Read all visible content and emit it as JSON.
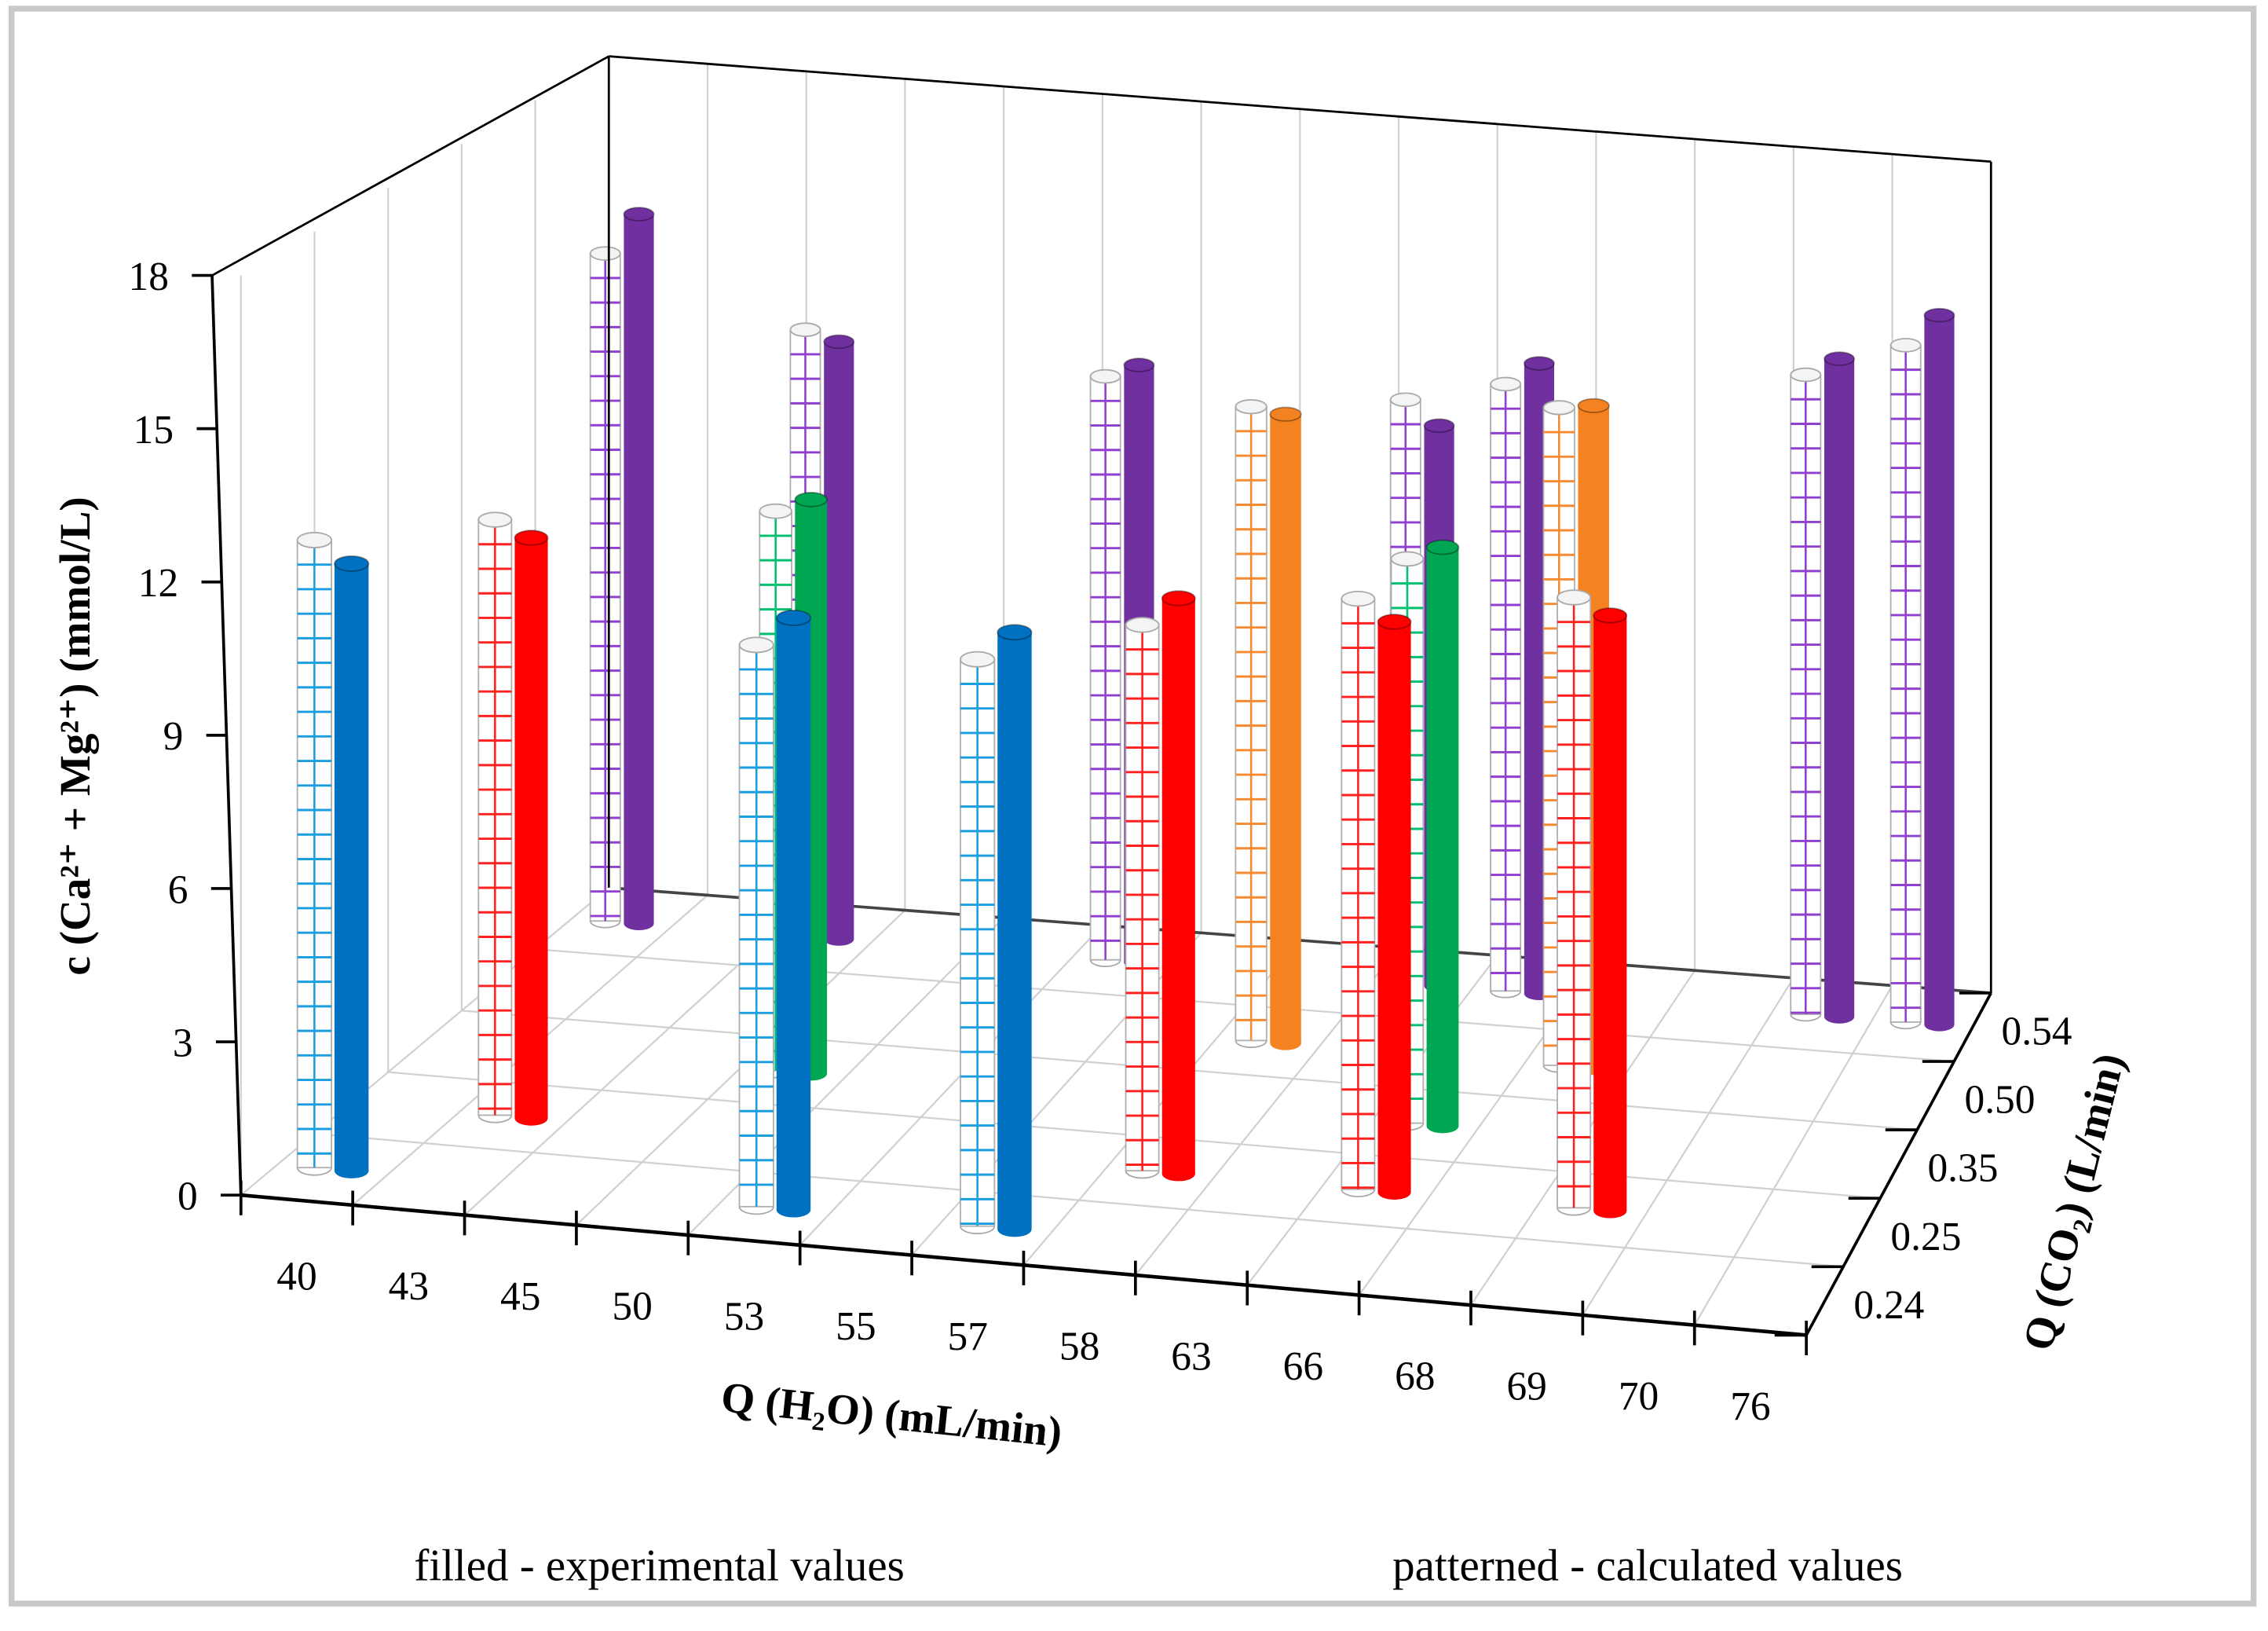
{
  "chart_data": {
    "type": "bar3d",
    "title": "",
    "ylabel": "c (Ca²⁺ + Mg²⁺) (mmol/L)",
    "xlabel": "Q (H₂O) (mL/min)",
    "zlabel": "Q (CO₂) (L/min)",
    "ylim": [
      0,
      18
    ],
    "yticks": [
      0,
      3,
      6,
      9,
      12,
      15,
      18
    ],
    "x_categories": [
      "40",
      "43",
      "45",
      "50",
      "53",
      "55",
      "57",
      "58",
      "63",
      "66",
      "68",
      "69",
      "70",
      "76"
    ],
    "z_categories": [
      "0.24",
      "0.25",
      "0.35",
      "0.50",
      "0.54"
    ],
    "legend": {
      "filled": "filled - experimental values",
      "patterned": "patterned  - calculated values"
    },
    "series": [
      {
        "name": "0.24",
        "color": "#0070c0",
        "pattern_color": "#1a9ee0",
        "points": [
          {
            "x": "40",
            "calculated": 12.4,
            "experimental": 12.0
          },
          {
            "x": "53",
            "calculated": 11.1,
            "experimental": 11.7
          },
          {
            "x": "57",
            "calculated": 11.2,
            "experimental": 11.8
          }
        ]
      },
      {
        "name": "0.25",
        "color": "#ff0000",
        "pattern_color": "#ff2020",
        "points": [
          {
            "x": "43",
            "calculated": 12.0,
            "experimental": 11.7
          },
          {
            "x": "58",
            "calculated": 11.0,
            "experimental": 11.6
          },
          {
            "x": "66",
            "calculated": 11.9,
            "experimental": 11.5
          },
          {
            "x": "69",
            "calculated": 12.3,
            "experimental": 12.0
          }
        ]
      },
      {
        "name": "0.35",
        "color": "#00a651",
        "pattern_color": "#00c070",
        "points": [
          {
            "x": "50",
            "calculated": 11.5,
            "experimental": 11.8
          },
          {
            "x": "66",
            "calculated": 11.6,
            "experimental": 11.9
          }
        ]
      },
      {
        "name": "0.50",
        "color": "#f58220",
        "pattern_color": "#f58a30",
        "points": [
          {
            "x": "58",
            "calculated": 13.3,
            "experimental": 13.2
          },
          {
            "x": "68",
            "calculated": 13.8,
            "experimental": 13.9
          }
        ]
      },
      {
        "name": "0.54",
        "color": "#7030a0",
        "pattern_color": "#9040d0",
        "points": [
          {
            "x": "40",
            "calculated": 14.3,
            "experimental": 15.2
          },
          {
            "x": "45",
            "calculated": 13.0,
            "experimental": 12.8
          },
          {
            "x": "55",
            "calculated": 12.5,
            "experimental": 12.8
          },
          {
            "x": "63",
            "calculated": 12.5,
            "experimental": 12.0
          },
          {
            "x": "66",
            "calculated": 13.0,
            "experimental": 13.5
          },
          {
            "x": "70",
            "calculated": 13.7,
            "experimental": 14.1
          },
          {
            "x": "76",
            "calculated": 14.5,
            "experimental": 15.2
          }
        ]
      }
    ]
  }
}
